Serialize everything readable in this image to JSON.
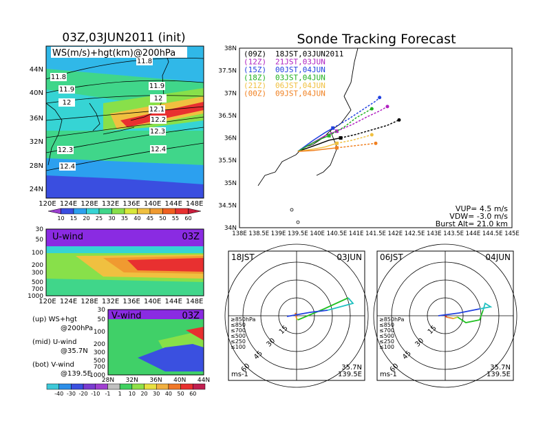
{
  "left": {
    "title": "03Z,03JUN2011 (init)",
    "map": {
      "label": "WS(m/s)+hgt(km)@200hPa",
      "lat_ticks": [
        "44N",
        "40N",
        "36N",
        "32N",
        "28N",
        "24N"
      ],
      "lon_ticks": [
        "120E",
        "124E",
        "128E",
        "132E",
        "136E",
        "140E",
        "144E",
        "148E"
      ],
      "contour_labels": [
        "11.8",
        "11.8",
        "11.9",
        "11.9",
        "12",
        "12",
        "12.1",
        "12.2",
        "12.3",
        "12.3",
        "12.4",
        "12.4"
      ],
      "colorbar": [
        "10",
        "15",
        "20",
        "25",
        "30",
        "35",
        "40",
        "45",
        "50",
        "55",
        "60"
      ],
      "colorbar_colors": [
        "#9b3fd0",
        "#3a4ee0",
        "#2ca0ef",
        "#36d4d4",
        "#40d68a",
        "#88e04a",
        "#d8e83a",
        "#f0c040",
        "#f09a30",
        "#f06020",
        "#e83030",
        "#c81e3c"
      ]
    },
    "uwind": {
      "label": "U-wind",
      "time": "03Z",
      "p_ticks": [
        "30",
        "50",
        "100",
        "200",
        "300",
        "500",
        "700",
        "1000"
      ],
      "lon_ticks": [
        "120E",
        "124E",
        "128E",
        "132E",
        "136E",
        "140E",
        "144E",
        "148E"
      ]
    },
    "vwind": {
      "label": "V-wind",
      "time": "03Z",
      "p_ticks": [
        "30",
        "50",
        "100",
        "200",
        "300",
        "500",
        "700",
        "1000"
      ],
      "lat_ticks": [
        "28N",
        "32N",
        "36N",
        "40N",
        "44N"
      ],
      "colorbar": [
        "-40",
        "-30",
        "-20",
        "-10",
        "-1",
        "1",
        "10",
        "20",
        "30",
        "40",
        "50",
        "60"
      ],
      "colorbar_colors": [
        "#3dc8d8",
        "#2c8ee8",
        "#3a50e0",
        "#7a3cd0",
        "#a040d0",
        "#c0c0c0",
        "#40d060",
        "#90e048",
        "#e8e040",
        "#f0b040",
        "#f07828",
        "#e83030",
        "#c02050"
      ]
    },
    "legend": [
      {
        "a": "(up) WS+hgt",
        "b": "@200hPa"
      },
      {
        "a": "(mid) U-wind",
        "b": "@35.7N"
      },
      {
        "a": "(bot) V-wind",
        "b": "@139.5E"
      }
    ]
  },
  "right": {
    "title": "Sonde Tracking Forecast",
    "lat_ticks": [
      "38N",
      "37.5N",
      "37N",
      "36.5N",
      "36N",
      "35.5N",
      "35N",
      "34.5N",
      "34N"
    ],
    "lon_ticks": [
      "138E",
      "138.5E",
      "139E",
      "139.5E",
      "140E",
      "140.5E",
      "141E",
      "141.5E",
      "142E",
      "142.5E",
      "143E",
      "143.5E",
      "144E",
      "144.5E",
      "145E"
    ],
    "legend": [
      {
        "code": "(09Z)",
        "time": "18JST,03JUN2011",
        "color": "#000000"
      },
      {
        "code": "(12Z)",
        "time": "21JST,03JUN",
        "color": "#b020c0"
      },
      {
        "code": "(15Z)",
        "time": "00JST,04JUN",
        "color": "#2040e0"
      },
      {
        "code": "(18Z)",
        "time": "03JST,04JUN",
        "color": "#20b020"
      },
      {
        "code": "(21Z)",
        "time": "06JST,04JUN",
        "color": "#f0c040"
      },
      {
        "code": "(00Z)",
        "time": "09JST,04JUN",
        "color": "#f08020"
      }
    ],
    "params": {
      "vup": "VUP= 4.5 m/s",
      "vdw": "VDW= -3.0 m/s",
      "burst": "Burst Alt= 21.0 km"
    }
  },
  "hodo1": {
    "left": "18JST",
    "right": "03JUN",
    "rings": [
      "15",
      "30",
      "45",
      "60"
    ],
    "unit": "ms-1",
    "loc1": "35.7N",
    "loc2": "139.5E",
    "levels": [
      {
        "t": "≥850hPa",
        "c": "#e02020"
      },
      {
        "t": "≤850",
        "c": "#f08020"
      },
      {
        "t": "≤700",
        "c": "#c8c820"
      },
      {
        "t": "≤500",
        "c": "#20c020"
      },
      {
        "t": "≤250",
        "c": "#20c0c0"
      },
      {
        "t": "≤100",
        "c": "#2040e0"
      }
    ]
  },
  "hodo2": {
    "left": "06JST",
    "right": "04JUN",
    "rings": [
      "15",
      "30",
      "45",
      "60"
    ],
    "unit": "ms-1",
    "loc1": "35.7N",
    "loc2": "139.5E",
    "levels": [
      {
        "t": "≥850hPa",
        "c": "#e02020"
      },
      {
        "t": "≤850",
        "c": "#f08020"
      },
      {
        "t": "≤700",
        "c": "#c8c820"
      },
      {
        "t": "≤500",
        "c": "#20c020"
      },
      {
        "t": "≤250",
        "c": "#20c0c0"
      },
      {
        "t": "≤100",
        "c": "#2040e0"
      }
    ]
  },
  "chart_data": {
    "type": "line",
    "title": "Sonde Tracking Forecast",
    "xlabel": "",
    "ylabel": "",
    "xlim": [
      138,
      145
    ],
    "ylim": [
      34,
      38
    ],
    "launch": [
      139.5,
      35.7
    ],
    "series": [
      {
        "name": "(09Z) 18JST,03JUN2011",
        "x": [
          139.5,
          139.9,
          140.3,
          140.6,
          141.0,
          141.4,
          141.8,
          142.1
        ],
        "y": [
          35.7,
          35.82,
          35.95,
          36.0,
          36.08,
          36.18,
          36.28,
          36.4
        ]
      },
      {
        "name": "(12Z) 21JST,03JUN",
        "x": [
          139.5,
          139.9,
          140.2,
          140.5,
          140.9,
          141.3,
          141.6,
          141.8
        ],
        "y": [
          35.7,
          35.9,
          36.05,
          36.15,
          36.3,
          36.48,
          36.6,
          36.7
        ]
      },
      {
        "name": "(15Z) 00JST,04JUN",
        "x": [
          139.5,
          139.9,
          140.2,
          140.4,
          140.8,
          141.2,
          141.5,
          141.6
        ],
        "y": [
          35.7,
          35.95,
          36.12,
          36.22,
          36.42,
          36.65,
          36.82,
          36.9
        ]
      },
      {
        "name": "(18Z) 03JST,04JUN",
        "x": [
          139.5,
          139.8,
          140.1,
          140.3,
          140.7,
          141.0,
          141.2,
          141.4
        ],
        "y": [
          35.7,
          35.85,
          35.98,
          36.05,
          36.25,
          36.45,
          36.55,
          36.65
        ]
      },
      {
        "name": "(21Z) 06JST,04JUN",
        "x": [
          139.5,
          139.9,
          140.2,
          140.5,
          140.9,
          141.2,
          141.4
        ],
        "y": [
          35.7,
          35.75,
          35.8,
          35.88,
          35.95,
          36.02,
          36.07
        ]
      },
      {
        "name": "(00Z) 09JST,04JUN",
        "x": [
          139.5,
          139.9,
          140.2,
          140.5,
          140.9,
          141.2,
          141.5
        ],
        "y": [
          35.7,
          35.72,
          35.75,
          35.78,
          35.82,
          35.85,
          35.88
        ]
      }
    ]
  }
}
